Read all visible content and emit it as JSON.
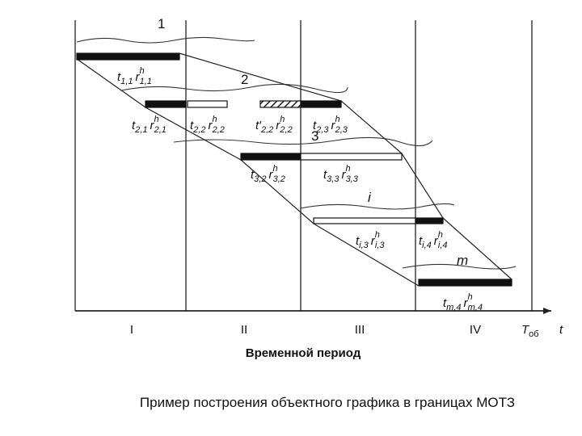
{
  "diagram": {
    "row_numbers": [
      "1",
      "2",
      "3",
      "i",
      "m"
    ],
    "labels": [
      {
        "t": "t",
        "t_sub": "1,1",
        "r": "r",
        "r_sup": "h",
        "r_sub": "1,1"
      },
      {
        "t": "t",
        "t_sub": "2,1",
        "r": "r",
        "r_sup": "h",
        "r_sub": "2,1"
      },
      {
        "t": "t",
        "t_sub": "2,2",
        "r": "r",
        "r_sup": "h",
        "r_sub": "2,2"
      },
      {
        "t": "t′",
        "t_sub": "2,2",
        "r": "r",
        "r_sup": "h",
        "r_sub": "2,2"
      },
      {
        "t": "t",
        "t_sub": "2,3",
        "r": "r",
        "r_sup": "h",
        "r_sub": "2,3"
      },
      {
        "t": "t",
        "t_sub": "3,2",
        "r": "r",
        "r_sup": "h",
        "r_sub": "3,2"
      },
      {
        "t": "t",
        "t_sub": "3,3",
        "r": "r",
        "r_sup": "h",
        "r_sub": "3,3"
      },
      {
        "t": "t",
        "t_sub": "i,3",
        "r": "r",
        "r_sup": "h",
        "r_sub": "i,3"
      },
      {
        "t": "t",
        "t_sub": "i,4",
        "r": "r",
        "r_sup": "h",
        "r_sub": "i,4"
      },
      {
        "t": "t",
        "t_sub": "m,4",
        "r": "r",
        "r_sup": "h",
        "r_sub": "m,4"
      }
    ],
    "periods": [
      "I",
      "II",
      "III",
      "IV"
    ],
    "end_label": {
      "T": "T",
      "sub": "об"
    },
    "axis_symbol": "t",
    "axis_title": "Временной период"
  },
  "caption": "Пример построения объектного графика в границах МОТЗ"
}
